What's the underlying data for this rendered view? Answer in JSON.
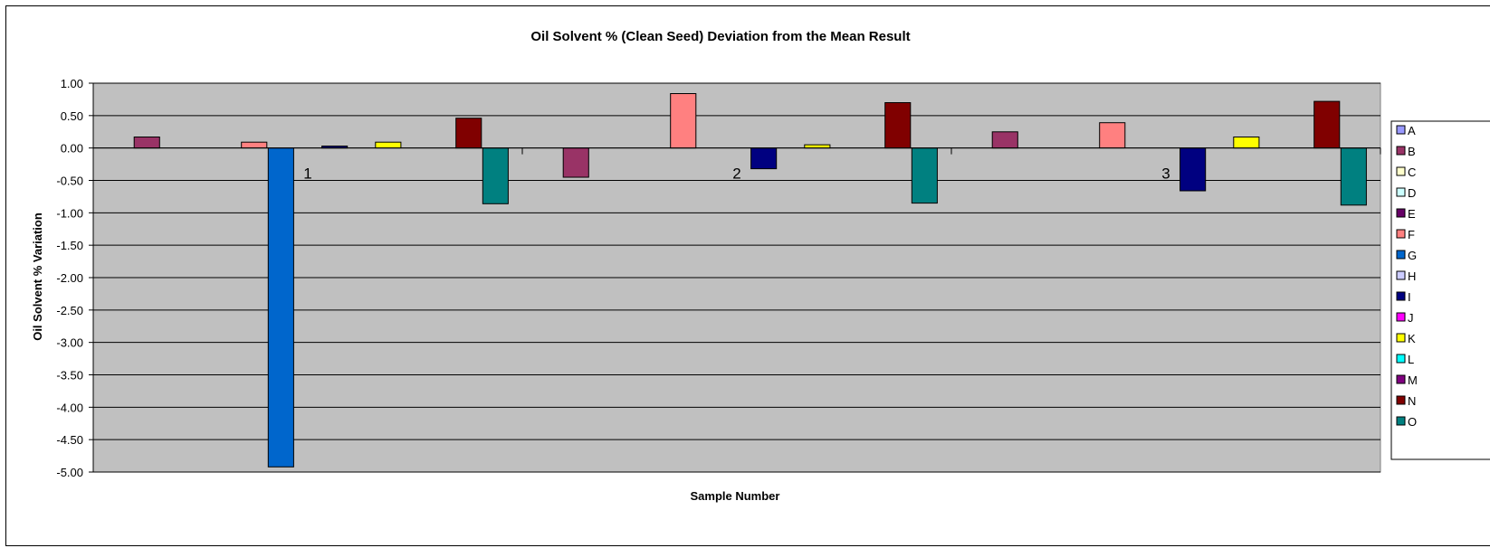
{
  "chart_data": {
    "type": "bar",
    "title": "Oil Solvent % (Clean Seed) Deviation from the Mean Result",
    "xlabel": "Sample Number",
    "ylabel": "Oil Solvent % Variation",
    "categories": [
      "1",
      "2",
      "3"
    ],
    "ylim": [
      -5.0,
      1.0
    ],
    "ytick_step": 0.5,
    "ytick_labels": [
      "1.00",
      "0.50",
      "0.00",
      "-0.50",
      "-1.00",
      "-1.50",
      "-2.00",
      "-2.50",
      "-3.00",
      "-3.50",
      "-4.00",
      "-4.50",
      "-5.00"
    ],
    "grid": true,
    "plot_background": "#c0c0c0",
    "legend_position": "right",
    "series": [
      {
        "name": "A",
        "color": "#9999ff",
        "values": [
          0,
          0,
          0
        ]
      },
      {
        "name": "B",
        "color": "#993366",
        "values": [
          0.17,
          -0.45,
          0.25
        ]
      },
      {
        "name": "C",
        "color": "#ffffcc",
        "values": [
          0,
          0,
          0
        ]
      },
      {
        "name": "D",
        "color": "#ccffff",
        "values": [
          0,
          0,
          0
        ]
      },
      {
        "name": "E",
        "color": "#660066",
        "values": [
          0,
          0,
          0
        ]
      },
      {
        "name": "F",
        "color": "#ff8080",
        "values": [
          0.09,
          0.84,
          0.39
        ]
      },
      {
        "name": "G",
        "color": "#0066cc",
        "values": [
          -4.92,
          0,
          0
        ]
      },
      {
        "name": "H",
        "color": "#ccccff",
        "values": [
          0,
          0,
          0
        ]
      },
      {
        "name": "I",
        "color": "#000080",
        "values": [
          0.03,
          -0.32,
          -0.66
        ]
      },
      {
        "name": "J",
        "color": "#ff00ff",
        "values": [
          0,
          0,
          0
        ]
      },
      {
        "name": "K",
        "color": "#ffff00",
        "values": [
          0.09,
          0.05,
          0.17
        ]
      },
      {
        "name": "L",
        "color": "#00ffff",
        "values": [
          0,
          0,
          0
        ]
      },
      {
        "name": "M",
        "color": "#800080",
        "values": [
          0,
          0,
          0
        ]
      },
      {
        "name": "N",
        "color": "#800000",
        "values": [
          0.46,
          0.7,
          0.72
        ]
      },
      {
        "name": "O",
        "color": "#008080",
        "values": [
          -0.86,
          -0.85,
          -0.88
        ]
      }
    ]
  }
}
